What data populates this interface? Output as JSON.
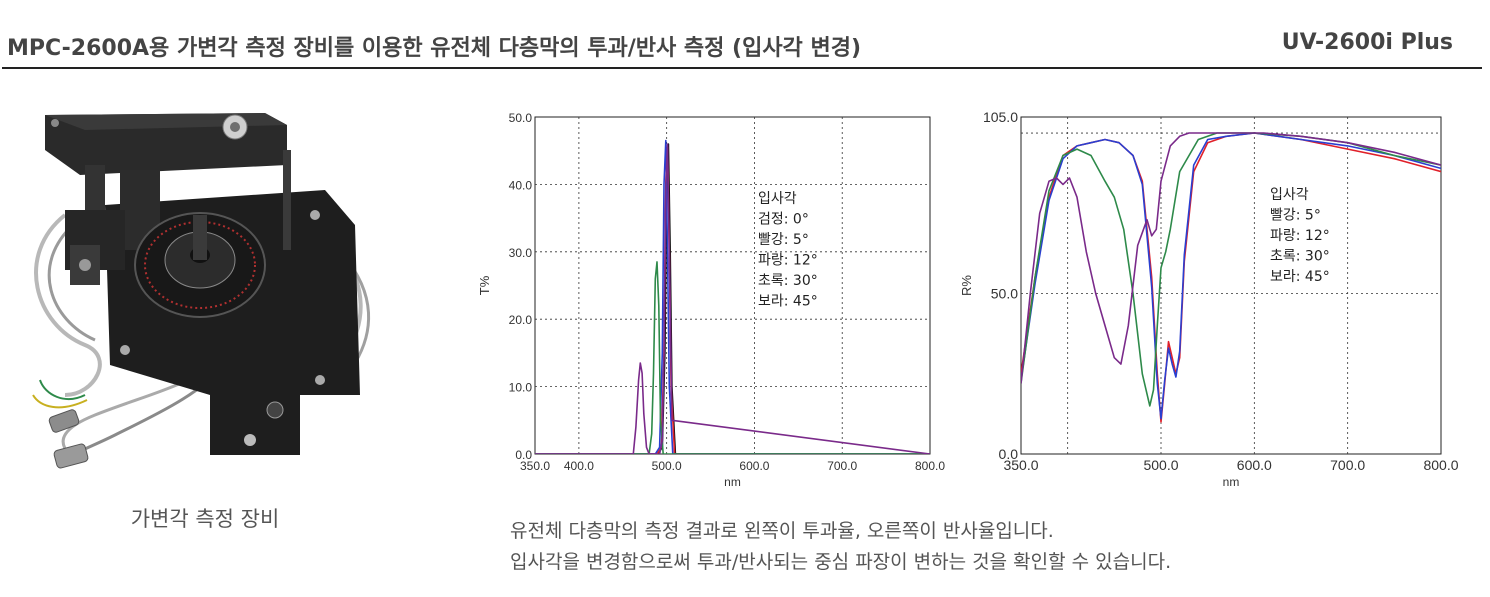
{
  "header": {
    "title": "MPC-2600A용 가변각 측정 장비를 이용한 유전체 다층막의 투과/반사 측정 (입사각 변경)",
    "product": "UV-2600i Plus"
  },
  "device": {
    "caption": "가변각 측정 장비"
  },
  "description": {
    "line1": "유전체 다층막의 측정 결과로 왼쪽이 투과율, 오른쪽이 반사율입니다.",
    "line2": "입사각을 변경함으로써 투과/반사되는 중심 파장이 변하는 것을 확인할 수 있습니다."
  },
  "colors": {
    "black": "#111111",
    "red": "#e0202a",
    "blue": "#2a3fd0",
    "green": "#2e8a4a",
    "purple": "#7a2a8a"
  },
  "chart_data": [
    {
      "type": "line",
      "title": "",
      "xlabel": "nm",
      "ylabel": "T%",
      "xlim": [
        350,
        800
      ],
      "ylim": [
        0,
        50
      ],
      "x_ticks": [
        "350.0",
        "400.0",
        "500.0",
        "600.0",
        "700.0",
        "800.0"
      ],
      "y_ticks": [
        "0.0",
        "10.0",
        "20.0",
        "30.0",
        "40.0",
        "50.0"
      ],
      "grid": true,
      "legend_placement": "center-right",
      "legend_lines": [
        "입사각",
        "검정: 0°",
        "빨강: 5°",
        "파랑: 12°",
        "초록: 30°",
        "보라: 45°"
      ],
      "series": [
        {
          "color": "#111111",
          "x": [
            350,
            490,
            495,
            498,
            500,
            502,
            504,
            506,
            510,
            800
          ],
          "y": [
            0,
            0,
            1,
            15,
            40,
            46,
            30,
            10,
            0,
            0
          ]
        },
        {
          "color": "#e0202a",
          "x": [
            350,
            489,
            494,
            497,
            499,
            501,
            503,
            505,
            509,
            800
          ],
          "y": [
            0,
            0,
            1,
            15,
            40,
            45.5,
            30,
            10,
            0,
            0
          ]
        },
        {
          "color": "#2a3fd0",
          "x": [
            350,
            487,
            492,
            495,
            497,
            499,
            501,
            503,
            507,
            800
          ],
          "y": [
            0,
            0,
            1,
            15,
            40,
            46.5,
            30,
            10,
            0,
            0
          ]
        },
        {
          "color": "#2e8a4a",
          "x": [
            350,
            480,
            483,
            485,
            487,
            489,
            491,
            493,
            496,
            800
          ],
          "y": [
            0,
            0,
            3,
            12,
            26,
            28.5,
            22,
            5,
            0,
            0
          ]
        },
        {
          "color": "#7a2a8a",
          "x": [
            350,
            462,
            465,
            468,
            470,
            472,
            474,
            477,
            480,
            492,
            495,
            497,
            499,
            501,
            503,
            506,
            800
          ],
          "y": [
            0,
            0,
            4,
            11,
            13.5,
            12,
            6,
            1,
            0,
            0,
            2,
            15,
            40,
            46,
            30,
            5,
            0
          ]
        }
      ]
    },
    {
      "type": "line",
      "title": "",
      "xlabel": "nm",
      "ylabel": "R%",
      "xlim": [
        350,
        800
      ],
      "ylim": [
        0,
        105
      ],
      "x_ticks": [
        "350.0",
        "500.0",
        "600.0",
        "700.0",
        "800.0"
      ],
      "y_ticks": [
        "0.0",
        "50.0",
        "105.0"
      ],
      "grid": true,
      "legend_placement": "center-right",
      "legend_lines": [
        "입사각",
        "빨강: 5°",
        "파랑: 12°",
        "초록: 30°",
        "보라: 45°"
      ],
      "series": [
        {
          "color": "#e0202a",
          "x": [
            350,
            365,
            380,
            395,
            410,
            425,
            440,
            455,
            470,
            480,
            490,
            496,
            500,
            504,
            508,
            512,
            516,
            520,
            525,
            535,
            550,
            570,
            600,
            650,
            700,
            750,
            800
          ],
          "y": [
            25,
            55,
            80,
            93,
            96,
            97,
            98,
            97,
            93,
            85,
            55,
            25,
            10,
            22,
            35,
            30,
            25,
            30,
            60,
            88,
            97,
            99,
            100,
            98,
            95,
            92,
            88
          ]
        },
        {
          "color": "#2a3fd0",
          "x": [
            350,
            365,
            380,
            395,
            410,
            425,
            440,
            455,
            470,
            480,
            490,
            496,
            500,
            504,
            508,
            512,
            516,
            520,
            525,
            535,
            550,
            570,
            600,
            650,
            700,
            750,
            800
          ],
          "y": [
            23,
            53,
            79,
            92,
            96,
            97,
            98,
            97,
            93,
            84,
            52,
            22,
            11,
            23,
            33,
            28,
            24,
            32,
            62,
            90,
            98,
            99,
            100,
            98,
            96,
            93,
            89
          ]
        },
        {
          "color": "#2e8a4a",
          "x": [
            350,
            365,
            380,
            395,
            410,
            425,
            440,
            450,
            460,
            470,
            480,
            488,
            492,
            496,
            500,
            505,
            510,
            520,
            540,
            560,
            600,
            650,
            700,
            750,
            800
          ],
          "y": [
            22,
            55,
            82,
            93,
            95,
            93,
            85,
            80,
            70,
            50,
            25,
            15,
            20,
            40,
            58,
            63,
            70,
            88,
            98,
            100,
            100,
            99,
            97,
            93,
            90
          ]
        },
        {
          "color": "#7a2a8a",
          "x": [
            350,
            360,
            370,
            380,
            388,
            395,
            402,
            410,
            420,
            430,
            440,
            450,
            457,
            465,
            475,
            485,
            490,
            495,
            500,
            510,
            520,
            530,
            550,
            580,
            610,
            650,
            700,
            750,
            800
          ],
          "y": [
            22,
            50,
            75,
            85,
            86,
            84,
            86,
            80,
            63,
            50,
            40,
            30,
            28,
            40,
            65,
            73,
            68,
            70,
            85,
            96,
            99,
            100,
            100,
            100,
            100,
            99,
            97,
            94,
            90
          ]
        }
      ]
    }
  ]
}
